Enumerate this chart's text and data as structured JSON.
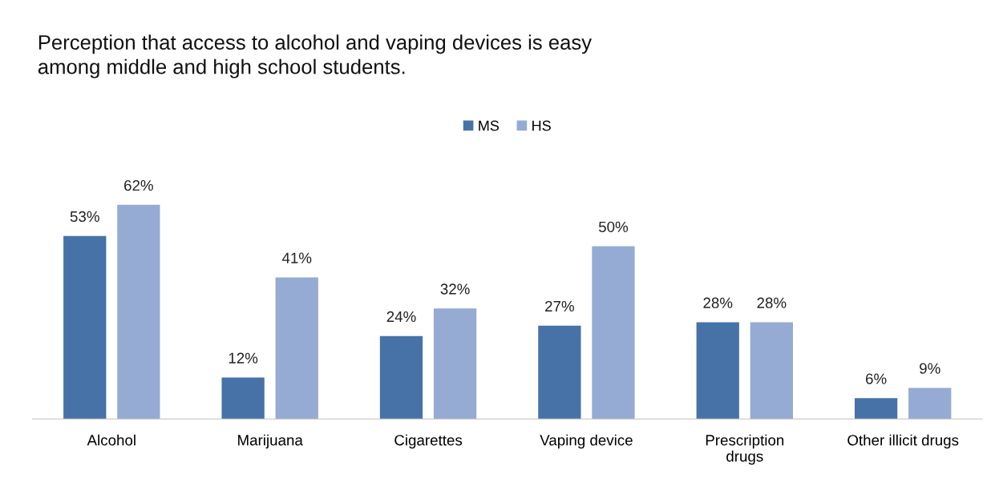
{
  "chart_data": {
    "type": "bar",
    "title": "Perception that access to alcohol and vaping devices is easy\namong middle and high school students.",
    "categories": [
      "Alcohol",
      "Marijuana",
      "Cigarettes",
      "Vaping device",
      "Prescription\ndrugs",
      "Other illicit drugs"
    ],
    "series": [
      {
        "name": "MS",
        "color": "#4672a8",
        "values": [
          53,
          12,
          24,
          27,
          28,
          6
        ],
        "value_labels": [
          "53%",
          "12%",
          "24%",
          "27%",
          "28%",
          "6%"
        ]
      },
      {
        "name": "HS",
        "color": "#95abd3",
        "values": [
          62,
          41,
          32,
          50,
          28,
          9
        ],
        "value_labels": [
          "62%",
          "41%",
          "32%",
          "50%",
          "28%",
          "9%"
        ]
      }
    ],
    "legend": "top",
    "grid": false
  }
}
